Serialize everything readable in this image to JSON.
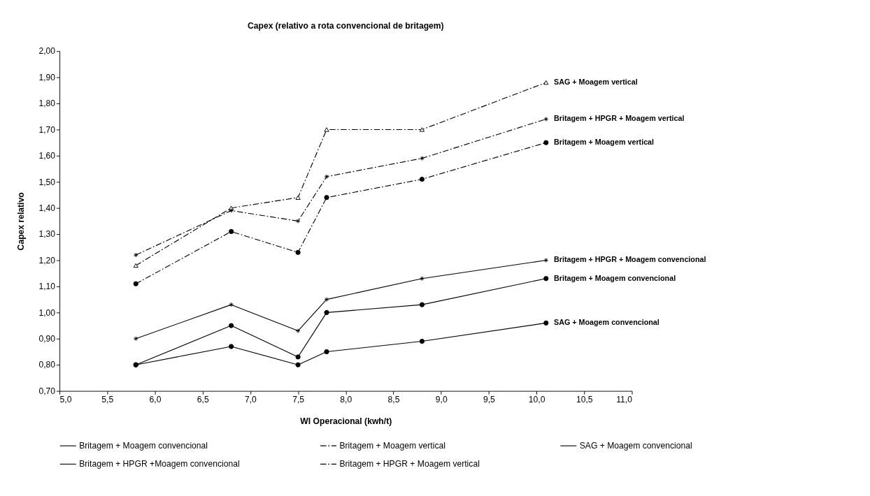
{
  "chart_data": {
    "type": "line",
    "title": "Capex (relativo a rota convencional de britagem)",
    "xlabel": "WI Operacional (kwh/t)",
    "ylabel": "Capex relativo",
    "x": [
      5.8,
      6.8,
      7.5,
      7.8,
      8.8,
      10.1
    ],
    "series": [
      {
        "name": "Britagem + Moagem convencional",
        "color": "#000000",
        "marker": "circle",
        "line_style": "solid",
        "values": [
          0.8,
          0.95,
          0.83,
          1.0,
          1.03,
          1.13
        ]
      },
      {
        "name": "Britagem + Moagem vertical",
        "color": "#000000",
        "marker": "circle",
        "line_style": "dashed",
        "values": [
          1.11,
          1.31,
          1.23,
          1.44,
          1.51,
          1.65
        ]
      },
      {
        "name": "SAG + Moagem convencional",
        "color": "#000000",
        "marker": "circle",
        "line_style": "solid",
        "values": [
          0.8,
          0.87,
          0.8,
          0.85,
          0.89,
          0.96
        ]
      },
      {
        "color": "#000000",
        "marker": "triangle",
        "line_style": "dashed",
        "values": [
          1.18,
          1.4,
          1.44,
          1.7,
          1.7,
          1.88
        ]
      },
      {
        "name": "Britagem + HPGR +Moagem convencional",
        "color": "#000000",
        "marker": "cross",
        "line_style": "solid",
        "values": [
          0.9,
          1.03,
          0.93,
          1.05,
          1.13,
          1.2
        ]
      },
      {
        "name": "Britagem + HPGR + Moagem vertical",
        "color": "#000000",
        "marker": "cross",
        "line_style": "dashed",
        "values": [
          1.22,
          1.39,
          1.35,
          1.52,
          1.59,
          1.74
        ]
      }
    ],
    "xlim": [
      5.0,
      11.0
    ],
    "xticks": [
      {
        "value": 5.0,
        "label": "5,0"
      },
      {
        "value": 5.5,
        "label": "5,5"
      },
      {
        "value": 6.0,
        "label": "6,0"
      },
      {
        "value": 6.5,
        "label": "6,5"
      },
      {
        "value": 7.0,
        "label": "7,0"
      },
      {
        "value": 7.5,
        "label": "7,5"
      },
      {
        "value": 8.0,
        "label": "8,0"
      },
      {
        "value": 8.5,
        "label": "8,5"
      },
      {
        "value": 9.0,
        "label": "9,0"
      },
      {
        "value": 9.5,
        "label": "9,5"
      },
      {
        "value": 10.0,
        "label": "10,0"
      },
      {
        "value": 10.5,
        "label": "10,5"
      },
      {
        "value": 11.0,
        "label": "11,0"
      }
    ],
    "ylim": [
      0.7,
      2.0
    ],
    "yticks": [
      {
        "value": 0.7,
        "label": "0,70"
      },
      {
        "value": 0.8,
        "label": "0,80"
      },
      {
        "value": 0.9,
        "label": "0,90"
      },
      {
        "value": 1.0,
        "label": "1,00"
      },
      {
        "value": 1.1,
        "label": "1,10"
      },
      {
        "value": 1.2,
        "label": "1,20"
      },
      {
        "value": 1.3,
        "label": "1,30"
      },
      {
        "value": 1.4,
        "label": "1,40"
      },
      {
        "value": 1.5,
        "label": "1,50"
      },
      {
        "value": 1.6,
        "label": "1,60"
      },
      {
        "value": 1.7,
        "label": "1,70"
      },
      {
        "value": 1.8,
        "label": "1,80"
      },
      {
        "value": 1.9,
        "label": "1,90"
      },
      {
        "value": 2.0,
        "label": "2,00"
      }
    ],
    "grid": false,
    "legend": "bottom",
    "annotations": [
      "Britagem + Moagem convencional",
      "Britagem + Moagem vertical",
      "SAG + Moagem convencional",
      "SAG + Moagem vertical",
      "Britagem + HPGR + Moagem convencional",
      "Britagem + HPGR + Moagem vertical"
    ]
  }
}
